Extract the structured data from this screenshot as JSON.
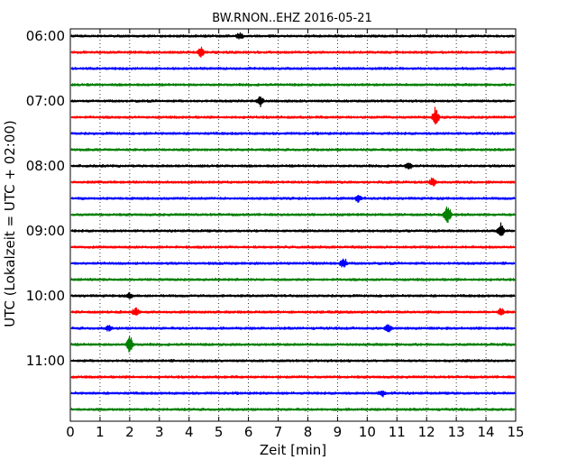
{
  "chart_data": {
    "type": "line",
    "title": "BW.RNON..EHZ 2016-05-21",
    "xlabel": "Zeit  [min]",
    "ylabel": "UTC (Lokalzeit = UTC + 02:00)",
    "xlim": [
      0,
      15
    ],
    "x_ticks": [
      "0",
      "1",
      "2",
      "3",
      "4",
      "5",
      "6",
      "7",
      "8",
      "9",
      "10",
      "11",
      "12",
      "13",
      "14",
      "15"
    ],
    "y_ticks": [
      "06:00",
      "07:00",
      "08:00",
      "09:00",
      "10:00",
      "11:00"
    ],
    "trace_interval_min": 15,
    "trace_colors": [
      "#000000",
      "#ff0000",
      "#0000ff",
      "#008000"
    ],
    "grid": "vertical dotted",
    "traces": [
      {
        "start": "06:00",
        "events": [
          {
            "t": 5.7,
            "amp": 0.3
          }
        ]
      },
      {
        "start": "06:15",
        "events": [
          {
            "t": 4.4,
            "amp": 0.45
          }
        ]
      },
      {
        "start": "06:30",
        "events": []
      },
      {
        "start": "06:45",
        "events": []
      },
      {
        "start": "07:00",
        "events": [
          {
            "t": 6.4,
            "amp": 0.35
          }
        ]
      },
      {
        "start": "07:15",
        "events": [
          {
            "t": 12.3,
            "amp": 0.8
          }
        ]
      },
      {
        "start": "07:30",
        "events": []
      },
      {
        "start": "07:45",
        "events": []
      },
      {
        "start": "08:00",
        "events": [
          {
            "t": 11.4,
            "amp": 0.3
          }
        ]
      },
      {
        "start": "08:15",
        "events": [
          {
            "t": 12.2,
            "amp": 0.35
          }
        ]
      },
      {
        "start": "08:30",
        "events": [
          {
            "t": 9.7,
            "amp": 0.3
          }
        ]
      },
      {
        "start": "08:45",
        "events": [
          {
            "t": 12.7,
            "amp": 0.9
          }
        ]
      },
      {
        "start": "09:00",
        "events": [
          {
            "t": 14.5,
            "amp": 0.6
          }
        ]
      },
      {
        "start": "09:15",
        "events": []
      },
      {
        "start": "09:30",
        "events": [
          {
            "t": 9.2,
            "amp": 0.45
          }
        ]
      },
      {
        "start": "09:45",
        "events": []
      },
      {
        "start": "10:00",
        "events": [
          {
            "t": 2.0,
            "amp": 0.25
          }
        ]
      },
      {
        "start": "10:15",
        "events": [
          {
            "t": 2.2,
            "amp": 0.35
          },
          {
            "t": 14.5,
            "amp": 0.3
          }
        ]
      },
      {
        "start": "10:30",
        "events": [
          {
            "t": 10.7,
            "amp": 0.4
          },
          {
            "t": 1.3,
            "amp": 0.25
          }
        ]
      },
      {
        "start": "10:45",
        "events": [
          {
            "t": 2.0,
            "amp": 0.8
          }
        ]
      },
      {
        "start": "11:00",
        "events": []
      },
      {
        "start": "11:15",
        "events": []
      },
      {
        "start": "11:30",
        "events": [
          {
            "t": 10.5,
            "amp": 0.25
          }
        ]
      },
      {
        "start": "11:45",
        "events": []
      }
    ]
  }
}
